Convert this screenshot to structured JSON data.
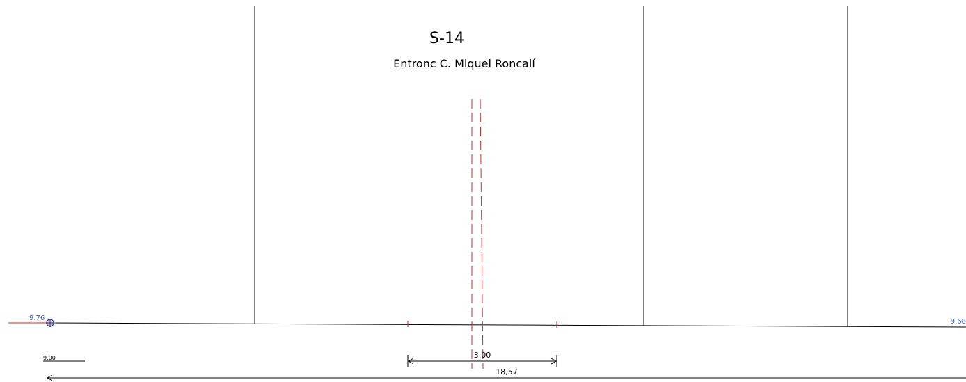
{
  "section": {
    "code": "S-14",
    "name": "Entronc C. Miquel Roncalí"
  },
  "elevations": {
    "left": "9.76",
    "right": "9.68"
  },
  "dimensions": {
    "scale_ref": "9,00",
    "road_width": "3,00",
    "total_width": "18,57"
  },
  "colors": {
    "line": "#000000",
    "centerline": "#d62728",
    "elevation_text": "#3a5da6",
    "marker_stroke": "#1f3a93"
  },
  "icons": {
    "origin_marker": "crosshair-circle-icon"
  }
}
